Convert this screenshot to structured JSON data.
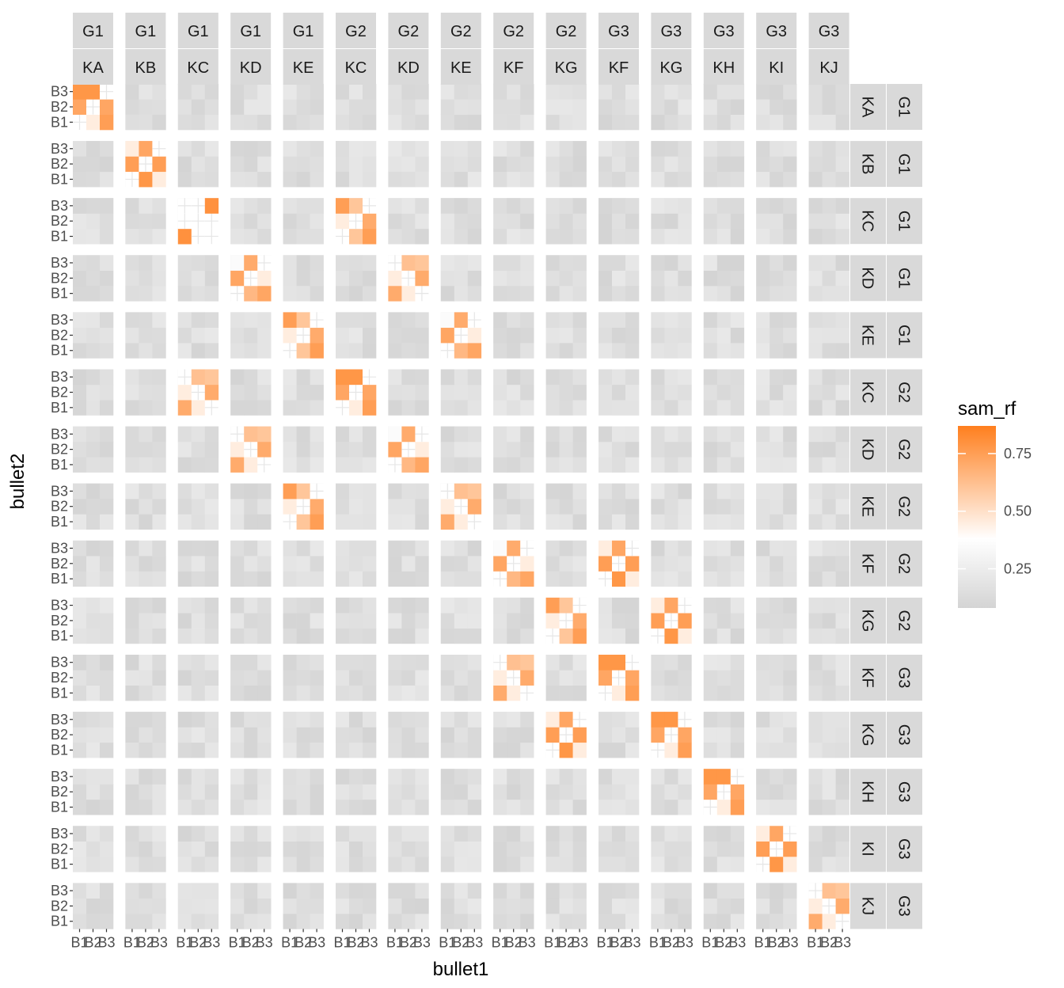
{
  "chart_data": {
    "type": "heatmap",
    "xlabel": "bullet1",
    "ylabel": "bullet2",
    "facet_cols": [
      {
        "group": "G1",
        "land": "KA"
      },
      {
        "group": "G1",
        "land": "KB"
      },
      {
        "group": "G1",
        "land": "KC"
      },
      {
        "group": "G1",
        "land": "KD"
      },
      {
        "group": "G1",
        "land": "KE"
      },
      {
        "group": "G2",
        "land": "KC"
      },
      {
        "group": "G2",
        "land": "KD"
      },
      {
        "group": "G2",
        "land": "KE"
      },
      {
        "group": "G2",
        "land": "KF"
      },
      {
        "group": "G2",
        "land": "KG"
      },
      {
        "group": "G3",
        "land": "KF"
      },
      {
        "group": "G3",
        "land": "KG"
      },
      {
        "group": "G3",
        "land": "KH"
      },
      {
        "group": "G3",
        "land": "KI"
      },
      {
        "group": "G3",
        "land": "KJ"
      }
    ],
    "facet_rows": [
      {
        "land": "KA",
        "group": "G1"
      },
      {
        "land": "KB",
        "group": "G1"
      },
      {
        "land": "KC",
        "group": "G1"
      },
      {
        "land": "KD",
        "group": "G1"
      },
      {
        "land": "KE",
        "group": "G1"
      },
      {
        "land": "KC",
        "group": "G2"
      },
      {
        "land": "KD",
        "group": "G2"
      },
      {
        "land": "KE",
        "group": "G2"
      },
      {
        "land": "KF",
        "group": "G2"
      },
      {
        "land": "KG",
        "group": "G2"
      },
      {
        "land": "KF",
        "group": "G3"
      },
      {
        "land": "KG",
        "group": "G3"
      },
      {
        "land": "KH",
        "group": "G3"
      },
      {
        "land": "KI",
        "group": "G3"
      },
      {
        "land": "KJ",
        "group": "G3"
      }
    ],
    "x_levels": [
      "B1",
      "B2",
      "B3"
    ],
    "y_levels": [
      "B1",
      "B2",
      "B3"
    ],
    "legend": {
      "title": "sam_rf",
      "breaks": [
        0.25,
        0.5,
        0.75
      ],
      "labels": [
        "0.25",
        "0.50",
        "0.75"
      ],
      "limits": [
        0.08,
        0.87
      ],
      "colors": [
        "#d4d4d4",
        "#ffffff",
        "#ff7f1e"
      ],
      "color_stops": [
        0.0,
        0.38,
        1.0
      ],
      "position": "right"
    },
    "diagonal_patterns": {
      "A": [
        [
          null,
          0.45,
          0.75
        ],
        [
          0.72,
          null,
          0.72
        ],
        [
          0.78,
          0.78,
          null
        ]
      ],
      "B": [
        [
          null,
          0.78,
          0.45
        ],
        [
          0.75,
          null,
          0.75
        ],
        [
          0.45,
          0.72,
          null
        ]
      ],
      "C": [
        [
          0.8,
          null,
          null
        ],
        [
          null,
          null,
          null
        ],
        [
          null,
          null,
          0.8
        ]
      ],
      "D": [
        [
          null,
          0.6,
          0.75
        ],
        [
          0.45,
          null,
          0.7
        ],
        [
          0.75,
          0.6,
          null
        ]
      ],
      "E": [
        [
          null,
          0.65,
          0.72
        ],
        [
          0.72,
          null,
          0.45
        ],
        [
          0.35,
          0.7,
          null
        ]
      ],
      "F": [
        [
          0.7,
          0.45,
          null
        ],
        [
          0.45,
          null,
          0.7
        ],
        [
          null,
          0.62,
          0.6
        ]
      ]
    },
    "background_range": [
      0.08,
      0.22
    ],
    "highlight_cells": [
      {
        "row": 0,
        "col": 0,
        "pattern": "A"
      },
      {
        "row": 1,
        "col": 1,
        "pattern": "B"
      },
      {
        "row": 2,
        "col": 2,
        "pattern": "C"
      },
      {
        "row": 2,
        "col": 5,
        "pattern": "D"
      },
      {
        "row": 3,
        "col": 3,
        "pattern": "E"
      },
      {
        "row": 3,
        "col": 6,
        "pattern": "F"
      },
      {
        "row": 4,
        "col": 4,
        "pattern": "D"
      },
      {
        "row": 4,
        "col": 7,
        "pattern": "E"
      },
      {
        "row": 5,
        "col": 2,
        "pattern": "F"
      },
      {
        "row": 5,
        "col": 5,
        "pattern": "A"
      },
      {
        "row": 6,
        "col": 3,
        "pattern": "F"
      },
      {
        "row": 6,
        "col": 6,
        "pattern": "E"
      },
      {
        "row": 7,
        "col": 4,
        "pattern": "D"
      },
      {
        "row": 7,
        "col": 7,
        "pattern": "F"
      },
      {
        "row": 8,
        "col": 8,
        "pattern": "E"
      },
      {
        "row": 8,
        "col": 10,
        "pattern": "B"
      },
      {
        "row": 9,
        "col": 9,
        "pattern": "D"
      },
      {
        "row": 9,
        "col": 11,
        "pattern": "B"
      },
      {
        "row": 10,
        "col": 8,
        "pattern": "F"
      },
      {
        "row": 10,
        "col": 10,
        "pattern": "A"
      },
      {
        "row": 11,
        "col": 9,
        "pattern": "B"
      },
      {
        "row": 11,
        "col": 11,
        "pattern": "A"
      },
      {
        "row": 12,
        "col": 12,
        "pattern": "A"
      },
      {
        "row": 13,
        "col": 13,
        "pattern": "B"
      },
      {
        "row": 14,
        "col": 14,
        "pattern": "F"
      }
    ]
  }
}
